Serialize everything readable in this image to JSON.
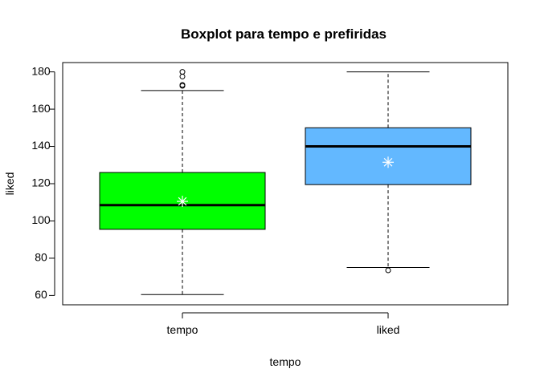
{
  "chart_data": {
    "type": "boxplot",
    "title": "Boxplot para  tempo e prefiridas",
    "xlabel": "tempo",
    "ylabel": "liked",
    "ylim": [
      55,
      185
    ],
    "yticks": [
      60,
      80,
      100,
      120,
      140,
      160,
      180
    ],
    "grid": false,
    "categories": [
      "tempo",
      "liked"
    ],
    "boxes": [
      {
        "label": "tempo",
        "color": "#00FF00",
        "whisker_low": 60.5,
        "q1": 95.5,
        "median": 108.5,
        "q3": 126,
        "whisker_high": 170,
        "mean": 110.5,
        "outliers": [
          172.5,
          173,
          177.5,
          180
        ]
      },
      {
        "label": "liked",
        "color": "#63B8FF",
        "whisker_low": 75,
        "q1": 119.5,
        "median": 140,
        "q3": 150,
        "whisker_high": 180,
        "mean": 131.5,
        "outliers": [
          73.5
        ]
      }
    ]
  }
}
